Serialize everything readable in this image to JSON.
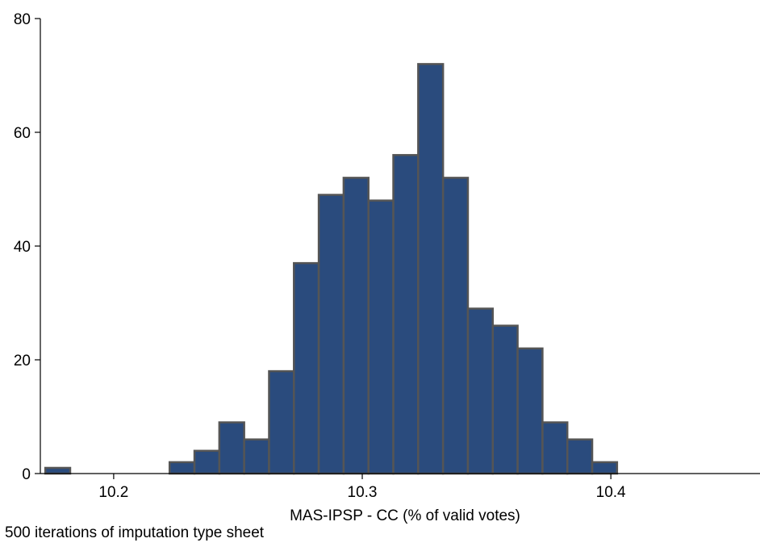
{
  "chart_data": {
    "type": "bar",
    "subtype": "histogram",
    "title": "",
    "xlabel": "MAS-IPSP - CC (% of valid votes)",
    "ylabel": "",
    "note": "500 iterations of imputation type sheet",
    "xlim": [
      10.1705,
      10.46
    ],
    "ylim": [
      0,
      80
    ],
    "bin_width": 0.01,
    "x_ticks": [
      "10.2",
      "10.3",
      "10.4"
    ],
    "x_tick_values": [
      10.2,
      10.3,
      10.4
    ],
    "y_ticks": [
      "0",
      "20",
      "40",
      "60",
      "80"
    ],
    "y_tick_values": [
      0,
      20,
      40,
      60,
      80
    ],
    "bins": [
      {
        "start": 10.1725,
        "end": 10.1825,
        "count": 1
      },
      {
        "start": 10.1825,
        "end": 10.1925,
        "count": 0
      },
      {
        "start": 10.1925,
        "end": 10.2025,
        "count": 0
      },
      {
        "start": 10.2025,
        "end": 10.2125,
        "count": 0
      },
      {
        "start": 10.2125,
        "end": 10.2225,
        "count": 0
      },
      {
        "start": 10.2225,
        "end": 10.2325,
        "count": 2
      },
      {
        "start": 10.2325,
        "end": 10.2425,
        "count": 4
      },
      {
        "start": 10.2425,
        "end": 10.2525,
        "count": 9
      },
      {
        "start": 10.2525,
        "end": 10.2625,
        "count": 6
      },
      {
        "start": 10.2625,
        "end": 10.2725,
        "count": 18
      },
      {
        "start": 10.2725,
        "end": 10.2825,
        "count": 37
      },
      {
        "start": 10.2825,
        "end": 10.2925,
        "count": 49
      },
      {
        "start": 10.2925,
        "end": 10.3025,
        "count": 52
      },
      {
        "start": 10.3025,
        "end": 10.3125,
        "count": 48
      },
      {
        "start": 10.3125,
        "end": 10.3225,
        "count": 56
      },
      {
        "start": 10.3225,
        "end": 10.3325,
        "count": 72
      },
      {
        "start": 10.3325,
        "end": 10.3425,
        "count": 52
      },
      {
        "start": 10.3425,
        "end": 10.3525,
        "count": 29
      },
      {
        "start": 10.3525,
        "end": 10.3625,
        "count": 26
      },
      {
        "start": 10.3625,
        "end": 10.3725,
        "count": 22
      },
      {
        "start": 10.3725,
        "end": 10.3825,
        "count": 9
      },
      {
        "start": 10.3825,
        "end": 10.3925,
        "count": 6
      },
      {
        "start": 10.3925,
        "end": 10.4025,
        "count": 2
      }
    ],
    "grid": false,
    "bar_fill": "#2a4b7d",
    "bar_stroke": "#555555"
  }
}
